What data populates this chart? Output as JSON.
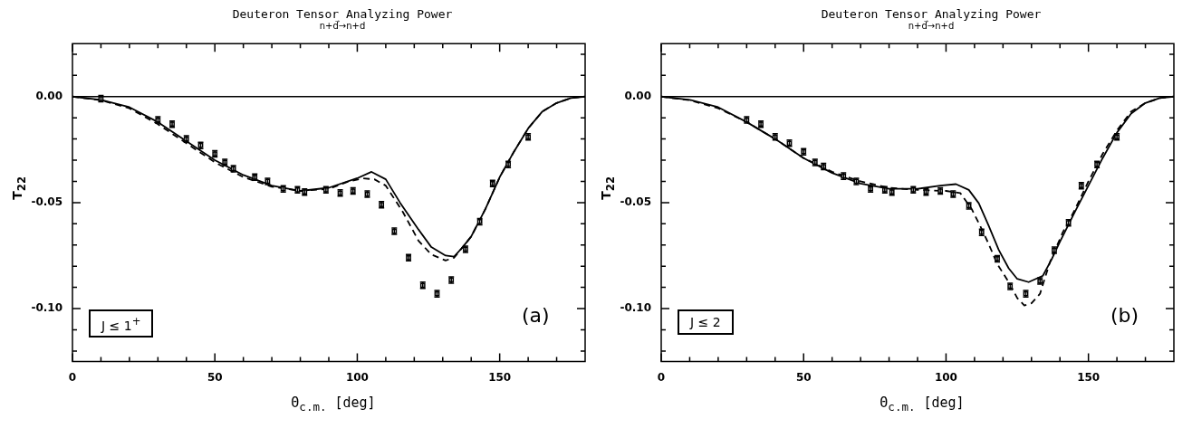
{
  "chart_data": [
    {
      "type": "line",
      "title": "Deuteron Tensor Analyzing Power",
      "subtitle": "n+d⃗→n+d",
      "xlabel": "Θ$_{c.m.}$ [deg]",
      "ylabel": "T$_{22}$",
      "xlim": [
        0,
        180
      ],
      "ylim": [
        -0.125,
        0.025
      ],
      "xticks": [
        0,
        {
          "value": 10,
          "label": null
        },
        {
          "value": 20,
          "label": null
        },
        {
          "value": 30,
          "label": null
        },
        {
          "value": 40,
          "label": null
        },
        50,
        {
          "value": 60,
          "label": null
        },
        {
          "value": 70,
          "label": null
        },
        {
          "value": 80,
          "label": null
        },
        {
          "value": 90,
          "label": null
        },
        100,
        {
          "value": 110,
          "label": null
        },
        {
          "value": 120,
          "label": null
        },
        {
          "value": 130,
          "label": null
        },
        {
          "value": 140,
          "label": null
        },
        150,
        {
          "value": 160,
          "label": null
        },
        {
          "value": 170,
          "label": null
        }
      ],
      "yticks": [
        {
          "value": -0.12,
          "label": null
        },
        {
          "value": -0.11,
          "label": null
        },
        {
          "value": -0.1,
          "label": "-0.10"
        },
        {
          "value": -0.09,
          "label": null
        },
        {
          "value": -0.08,
          "label": null
        },
        {
          "value": -0.07,
          "label": null
        },
        {
          "value": -0.06,
          "label": null
        },
        {
          "value": -0.05,
          "label": "-0.05"
        },
        {
          "value": -0.04,
          "label": null
        },
        {
          "value": -0.03,
          "label": null
        },
        {
          "value": -0.02,
          "label": null
        },
        {
          "value": -0.01,
          "label": null
        },
        {
          "value": 0,
          "label": "0.00"
        },
        {
          "value": 0.01,
          "label": null
        },
        {
          "value": 0.02,
          "label": null
        }
      ],
      "ref_lines": [
        {
          "axis": "y",
          "value": 0,
          "color": "#000000"
        }
      ],
      "annotations": [
        "J ≤ 1$^{+}$",
        "(a)"
      ],
      "series": [
        {
          "type": "scatter",
          "marker": "square",
          "color": "#000000",
          "x": [
            10,
            30,
            35,
            40,
            45,
            50,
            53.5,
            56.5,
            64,
            68.5,
            74,
            79,
            81.5,
            89,
            94,
            98.5,
            103.5,
            108.5,
            113,
            118,
            123,
            128,
            133,
            138,
            143,
            147.5,
            153,
            160
          ],
          "values": [
            -0.001,
            -0.011,
            -0.013,
            -0.02,
            -0.023,
            -0.027,
            -0.031,
            -0.034,
            -0.038,
            -0.04,
            -0.0435,
            -0.044,
            -0.045,
            -0.044,
            -0.0455,
            -0.0445,
            -0.046,
            -0.051,
            -0.0635,
            -0.076,
            -0.089,
            -0.093,
            -0.0865,
            -0.072,
            -0.059,
            -0.041,
            -0.032,
            -0.019
          ],
          "errors": [
            0.0015,
            0.0015,
            0.0015,
            0.0015,
            0.0015,
            0.0015,
            0.0015,
            0.0015,
            0.0015,
            0.0015,
            0.0015,
            0.0015,
            0.0015,
            0.0015,
            0.0015,
            0.0015,
            0.0015,
            0.0015,
            0.0015,
            0.0015,
            0.0015,
            0.0015,
            0.0015,
            0.0015,
            0.0015,
            0.0015,
            0.0015,
            0.0015
          ]
        },
        {
          "type": "line",
          "line_style": "solid",
          "color": "#000000",
          "x": [
            0,
            10,
            20,
            30,
            40,
            50,
            60,
            70,
            80,
            90,
            100,
            105,
            110,
            115,
            121.5,
            126,
            131,
            134,
            137,
            140,
            145,
            150,
            155,
            160,
            165,
            170,
            175,
            180
          ],
          "values": [
            0,
            -0.0015,
            -0.005,
            -0.012,
            -0.021,
            -0.03,
            -0.037,
            -0.042,
            -0.0445,
            -0.043,
            -0.0385,
            -0.0355,
            -0.039,
            -0.05,
            -0.0627,
            -0.071,
            -0.075,
            -0.0755,
            -0.071,
            -0.066,
            -0.053,
            -0.038,
            -0.026,
            -0.015,
            -0.007,
            -0.003,
            -0.0007,
            0
          ]
        },
        {
          "type": "line",
          "line_style": "dashed",
          "color": "#000000",
          "x": [
            0,
            10,
            20,
            30,
            40,
            50,
            60,
            70,
            80,
            90,
            97,
            102,
            106,
            110,
            116,
            121.5,
            126,
            131,
            134,
            137,
            140,
            145,
            150,
            155,
            160,
            165,
            170,
            175,
            180
          ],
          "values": [
            0,
            -0.0017,
            -0.0055,
            -0.013,
            -0.022,
            -0.031,
            -0.038,
            -0.0425,
            -0.0445,
            -0.0435,
            -0.04,
            -0.0386,
            -0.039,
            -0.042,
            -0.0544,
            -0.068,
            -0.0745,
            -0.0773,
            -0.076,
            -0.071,
            -0.066,
            -0.053,
            -0.038,
            -0.026,
            -0.015,
            -0.007,
            -0.003,
            -0.0007,
            0
          ]
        }
      ]
    },
    {
      "type": "line",
      "title": "Deuteron Tensor Analyzing Power",
      "subtitle": "n+d⃗→n+d",
      "xlabel": "Θ$_{c.m.}$ [deg]",
      "ylabel": "T$_{22}$",
      "xlim": [
        0,
        180
      ],
      "ylim": [
        -0.125,
        0.025
      ],
      "xticks": [
        0,
        {
          "value": 10,
          "label": null
        },
        {
          "value": 20,
          "label": null
        },
        {
          "value": 30,
          "label": null
        },
        {
          "value": 40,
          "label": null
        },
        50,
        {
          "value": 60,
          "label": null
        },
        {
          "value": 70,
          "label": null
        },
        {
          "value": 80,
          "label": null
        },
        {
          "value": 90,
          "label": null
        },
        100,
        {
          "value": 110,
          "label": null
        },
        {
          "value": 120,
          "label": null
        },
        {
          "value": 130,
          "label": null
        },
        {
          "value": 140,
          "label": null
        },
        150,
        {
          "value": 160,
          "label": null
        },
        {
          "value": 170,
          "label": null
        }
      ],
      "yticks": [
        {
          "value": -0.12,
          "label": null
        },
        {
          "value": -0.11,
          "label": null
        },
        {
          "value": -0.1,
          "label": "-0.10"
        },
        {
          "value": -0.09,
          "label": null
        },
        {
          "value": -0.08,
          "label": null
        },
        {
          "value": -0.07,
          "label": null
        },
        {
          "value": -0.06,
          "label": null
        },
        {
          "value": -0.05,
          "label": "-0.05"
        },
        {
          "value": -0.04,
          "label": null
        },
        {
          "value": -0.03,
          "label": null
        },
        {
          "value": -0.02,
          "label": null
        },
        {
          "value": -0.01,
          "label": null
        },
        {
          "value": 0,
          "label": "0.00"
        },
        {
          "value": 0.01,
          "label": null
        },
        {
          "value": 0.02,
          "label": null
        }
      ],
      "ref_lines": [
        {
          "axis": "y",
          "value": 0,
          "color": "#000000"
        }
      ],
      "annotations": [
        "J ≤ 2",
        "(b)"
      ],
      "series": [
        {
          "type": "scatter",
          "marker": "square",
          "color": "#000000",
          "x": [
            30,
            35,
            40,
            45,
            50,
            54,
            57,
            64,
            68.5,
            73.5,
            78.5,
            81,
            88.5,
            93,
            98,
            102.5,
            108,
            112.5,
            118,
            122.5,
            128,
            133,
            138,
            143,
            147.5,
            153,
            160
          ],
          "values": [
            -0.011,
            -0.013,
            -0.019,
            -0.022,
            -0.026,
            -0.031,
            -0.033,
            -0.0375,
            -0.04,
            -0.0435,
            -0.044,
            -0.045,
            -0.044,
            -0.045,
            -0.0445,
            -0.046,
            -0.0515,
            -0.064,
            -0.0765,
            -0.0895,
            -0.093,
            -0.087,
            -0.0725,
            -0.0595,
            -0.042,
            -0.032,
            -0.019
          ],
          "errors": [
            0.0015,
            0.0015,
            0.0015,
            0.0015,
            0.0015,
            0.0015,
            0.0015,
            0.0015,
            0.0015,
            0.0015,
            0.0015,
            0.0015,
            0.0015,
            0.0015,
            0.0015,
            0.0015,
            0.0015,
            0.0015,
            0.0015,
            0.0015,
            0.0015,
            0.0015,
            0.0015,
            0.0015,
            0.0015,
            0.0015,
            0.0015
          ]
        },
        {
          "type": "line",
          "line_style": "solid",
          "color": "#000000",
          "x": [
            0,
            10,
            20,
            30,
            40,
            50,
            60,
            70,
            80,
            90,
            98,
            103.5,
            108,
            111.5,
            115,
            118.5,
            122,
            125,
            129,
            134,
            137,
            140,
            145,
            150,
            155,
            160,
            165,
            170,
            175,
            180
          ],
          "values": [
            0,
            -0.0015,
            -0.005,
            -0.012,
            -0.02,
            -0.029,
            -0.036,
            -0.041,
            -0.0435,
            -0.0435,
            -0.042,
            -0.0413,
            -0.044,
            -0.0503,
            -0.061,
            -0.0723,
            -0.081,
            -0.086,
            -0.0875,
            -0.0845,
            -0.077,
            -0.0685,
            -0.055,
            -0.042,
            -0.029,
            -0.017,
            -0.008,
            -0.003,
            -0.0007,
            0
          ]
        },
        {
          "type": "line",
          "line_style": "dashed",
          "color": "#000000",
          "x": [
            0,
            10,
            20,
            30,
            40,
            50,
            60,
            70,
            80,
            90,
            100,
            105,
            109,
            112,
            115,
            118,
            122,
            125,
            127.5,
            130,
            133,
            136.5,
            141,
            145,
            150,
            155,
            160,
            165,
            170,
            175,
            180
          ],
          "values": [
            0,
            -0.0017,
            -0.0055,
            -0.012,
            -0.02,
            -0.029,
            -0.0355,
            -0.04,
            -0.043,
            -0.044,
            -0.0445,
            -0.0455,
            -0.053,
            -0.061,
            -0.0696,
            -0.079,
            -0.0875,
            -0.095,
            -0.0985,
            -0.0975,
            -0.093,
            -0.078,
            -0.064,
            -0.054,
            -0.04,
            -0.027,
            -0.016,
            -0.007,
            -0.003,
            -0.0007,
            0
          ]
        }
      ]
    }
  ]
}
